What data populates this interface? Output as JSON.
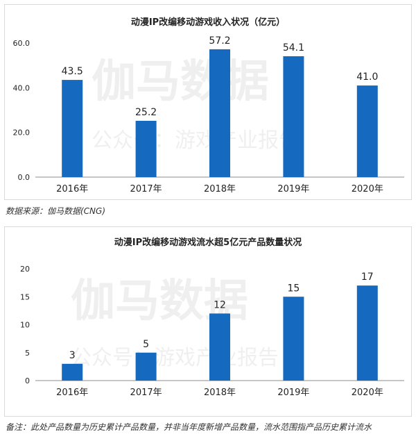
{
  "watermark": {
    "brand": "伽马数据",
    "sub": "公众号：游戏产业报告"
  },
  "source_text": "数据来源：伽马数据(CNG)",
  "footnote_text": "备注：此处产品数量为历史累计产品数量，并非当年度新增产品数量，流水范围指产品历史累计流水",
  "colors": {
    "bar": "#1569bf",
    "axis": "#8c8c8c"
  },
  "chart_data": [
    {
      "type": "bar",
      "title": "动漫IP改编移动游戏收入状况（亿元）",
      "categories": [
        "2016年",
        "2017年",
        "2018年",
        "2019年",
        "2020年"
      ],
      "values": [
        43.5,
        25.2,
        57.2,
        54.1,
        41.0
      ],
      "value_labels": [
        "43.5",
        "25.2",
        "57.2",
        "54.1",
        "41.0"
      ],
      "yticks": [
        "0.0",
        "20.0",
        "40.0",
        "60.0"
      ],
      "ylim": [
        0,
        60
      ],
      "grid": false,
      "xlabel": "",
      "ylabel": ""
    },
    {
      "type": "bar",
      "title": "动漫IP改编移动游戏流水超5亿元产品数量状况",
      "categories": [
        "2016年",
        "2017年",
        "2018年",
        "2019年",
        "2020年"
      ],
      "values": [
        3,
        5,
        12,
        15,
        17
      ],
      "value_labels": [
        "3",
        "5",
        "12",
        "15",
        "17"
      ],
      "yticks": [
        "0",
        "5",
        "10",
        "15",
        "20"
      ],
      "ylim": [
        0,
        20
      ],
      "grid": false,
      "xlabel": "",
      "ylabel": ""
    }
  ]
}
